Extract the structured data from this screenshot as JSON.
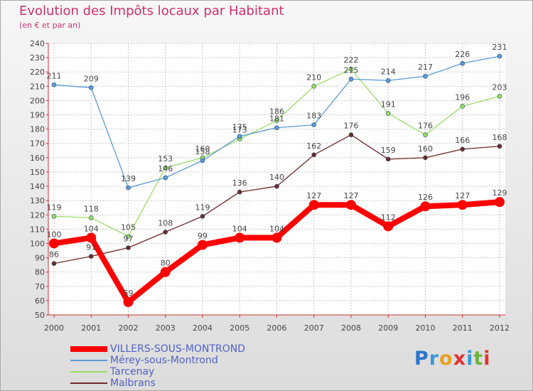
{
  "header": {
    "title": "Evolution des Impôts locaux par Habitant",
    "subtitle": "(en € et par an)"
  },
  "chart_data": {
    "type": "line",
    "title": "Evolution des Impôts locaux par Habitant",
    "subtitle": "(en € et par an)",
    "xlabel": "",
    "ylabel": "",
    "x": [
      "2000",
      "2001",
      "2002",
      "2003",
      "2004",
      "2005",
      "2006",
      "2007",
      "2008",
      "2009",
      "2010",
      "2011",
      "2012"
    ],
    "ylim": [
      50,
      240
    ],
    "ytick_step": 10,
    "grid": true,
    "legend_position": "bottom-left",
    "series": [
      {
        "name": "VILLERS-SOUS-MONTROND",
        "color": "#ff0000",
        "values": [
          100,
          104,
          59,
          80,
          99,
          104,
          104,
          127,
          127,
          112,
          126,
          127,
          129
        ],
        "labels": [
          "100",
          "104",
          "59",
          "80",
          "99",
          "104",
          "104",
          "127",
          "127",
          "112",
          "126",
          "127",
          "129"
        ]
      },
      {
        "name": "Mérey-sous-Montrond",
        "color": "#5b9bd5",
        "values": [
          211,
          209,
          139,
          146,
          158,
          175,
          181,
          183,
          215,
          214,
          217,
          226,
          231
        ],
        "labels": [
          "211",
          "209",
          "139",
          "146",
          "158",
          "175",
          "181",
          "183",
          "215",
          "214",
          "217",
          "226",
          "231"
        ]
      },
      {
        "name": "Tarcenay",
        "color": "#99dd66",
        "values": [
          119,
          118,
          105,
          153,
          160,
          173,
          186,
          210,
          222,
          191,
          176,
          196,
          203
        ],
        "labels": [
          "119",
          "118",
          "105",
          "153",
          "160",
          "173",
          "186",
          "210",
          "222",
          "191",
          "176",
          "196",
          "203"
        ]
      },
      {
        "name": "Malbrans",
        "color": "#6e2a2a",
        "values": [
          86,
          91,
          97,
          108,
          119,
          136,
          140,
          162,
          176,
          159,
          160,
          166,
          168
        ],
        "labels": [
          "86",
          "91",
          "97",
          "108",
          "119",
          "136",
          "140",
          "162",
          "176",
          "159",
          "160",
          "166",
          "168"
        ]
      }
    ]
  },
  "logo": {
    "letters": [
      "P",
      "r",
      "o",
      "x",
      "i",
      "t",
      "i"
    ],
    "colors": [
      "#2a73c9",
      "#3a9ad9",
      "#e8a020",
      "#e63232",
      "#3a9ad9",
      "#6bb33a",
      "#e63232"
    ]
  }
}
